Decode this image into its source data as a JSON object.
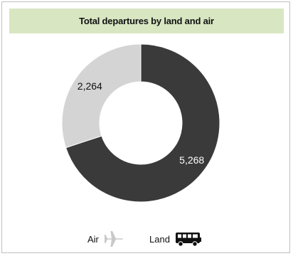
{
  "chart_data": {
    "type": "pie",
    "title": "Total departures by land and air",
    "donut": true,
    "slices": [
      {
        "name": "Land",
        "value": 5268,
        "label": "5,268",
        "color": "#3a3a3a"
      },
      {
        "name": "Air",
        "value": 2264,
        "label": "2,264",
        "color": "#d4d4d4"
      }
    ],
    "legend": {
      "placement": "bottom",
      "items": [
        {
          "name": "Air",
          "icon": "airplane-icon",
          "icon_color": "#c9c9c9"
        },
        {
          "name": "Land",
          "icon": "bus-icon",
          "icon_color": "#111111"
        }
      ]
    }
  }
}
